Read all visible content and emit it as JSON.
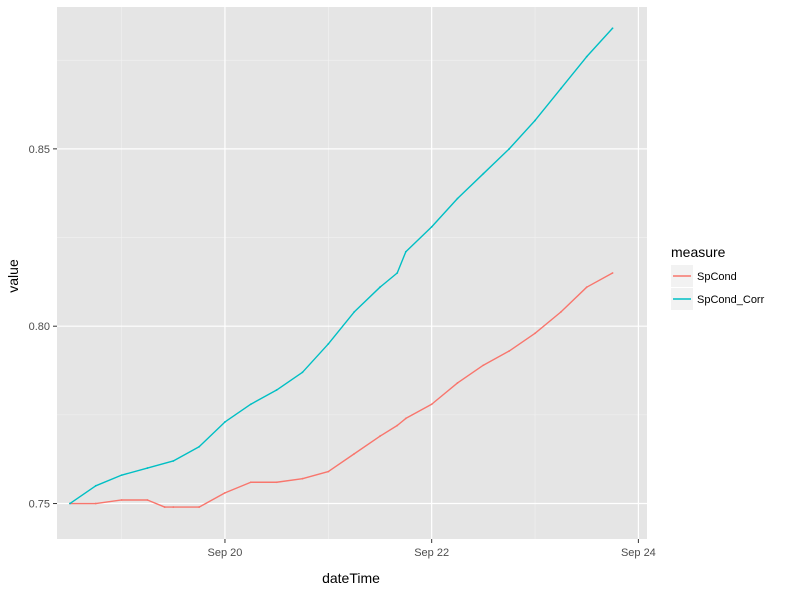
{
  "chart_data": {
    "type": "line",
    "xlabel": "dateTime",
    "ylabel": "value",
    "x_ticks": [
      "Sep 20",
      "Sep 22",
      "Sep 24"
    ],
    "y_ticks": [
      "0.75",
      "0.80",
      "0.85"
    ],
    "y_tick_values": [
      0.75,
      0.8,
      0.85
    ],
    "xlim": [
      "2016-09-18 09:00",
      "2016-09-24 02:00"
    ],
    "ylim": [
      0.74,
      0.89
    ],
    "grid": true,
    "panel_background": "#e5e5e5",
    "legend": {
      "title": "measure",
      "position": "right"
    },
    "series": [
      {
        "name": "SpCond",
        "color": "#f8766d",
        "x": [
          "2016-09-18 12:00",
          "2016-09-18 18:00",
          "2016-09-19 00:00",
          "2016-09-19 06:00",
          "2016-09-19 10:00",
          "2016-09-19 12:00",
          "2016-09-19 18:00",
          "2016-09-20 00:00",
          "2016-09-20 06:00",
          "2016-09-20 12:00",
          "2016-09-20 18:00",
          "2016-09-21 00:00",
          "2016-09-21 06:00",
          "2016-09-21 12:00",
          "2016-09-21 16:00",
          "2016-09-21 18:00",
          "2016-09-22 00:00",
          "2016-09-22 06:00",
          "2016-09-22 12:00",
          "2016-09-22 18:00",
          "2016-09-23 00:00",
          "2016-09-23 06:00",
          "2016-09-23 12:00",
          "2016-09-23 18:00"
        ],
        "values": [
          0.75,
          0.75,
          0.751,
          0.751,
          0.749,
          0.749,
          0.749,
          0.753,
          0.756,
          0.756,
          0.757,
          0.759,
          0.764,
          0.769,
          0.772,
          0.774,
          0.778,
          0.784,
          0.789,
          0.793,
          0.798,
          0.804,
          0.811,
          0.815
        ]
      },
      {
        "name": "SpCond_Corr",
        "color": "#00bfc4",
        "x": [
          "2016-09-18 12:00",
          "2016-09-18 18:00",
          "2016-09-19 00:00",
          "2016-09-19 06:00",
          "2016-09-19 12:00",
          "2016-09-19 18:00",
          "2016-09-20 00:00",
          "2016-09-20 06:00",
          "2016-09-20 12:00",
          "2016-09-20 18:00",
          "2016-09-21 00:00",
          "2016-09-21 06:00",
          "2016-09-21 12:00",
          "2016-09-21 16:00",
          "2016-09-21 18:00",
          "2016-09-22 00:00",
          "2016-09-22 06:00",
          "2016-09-22 12:00",
          "2016-09-22 18:00",
          "2016-09-23 00:00",
          "2016-09-23 06:00",
          "2016-09-23 12:00",
          "2016-09-23 18:00"
        ],
        "values": [
          0.75,
          0.755,
          0.758,
          0.76,
          0.762,
          0.766,
          0.773,
          0.778,
          0.782,
          0.787,
          0.795,
          0.804,
          0.811,
          0.815,
          0.821,
          0.828,
          0.836,
          0.843,
          0.85,
          0.858,
          0.867,
          0.876,
          0.884
        ]
      }
    ]
  }
}
